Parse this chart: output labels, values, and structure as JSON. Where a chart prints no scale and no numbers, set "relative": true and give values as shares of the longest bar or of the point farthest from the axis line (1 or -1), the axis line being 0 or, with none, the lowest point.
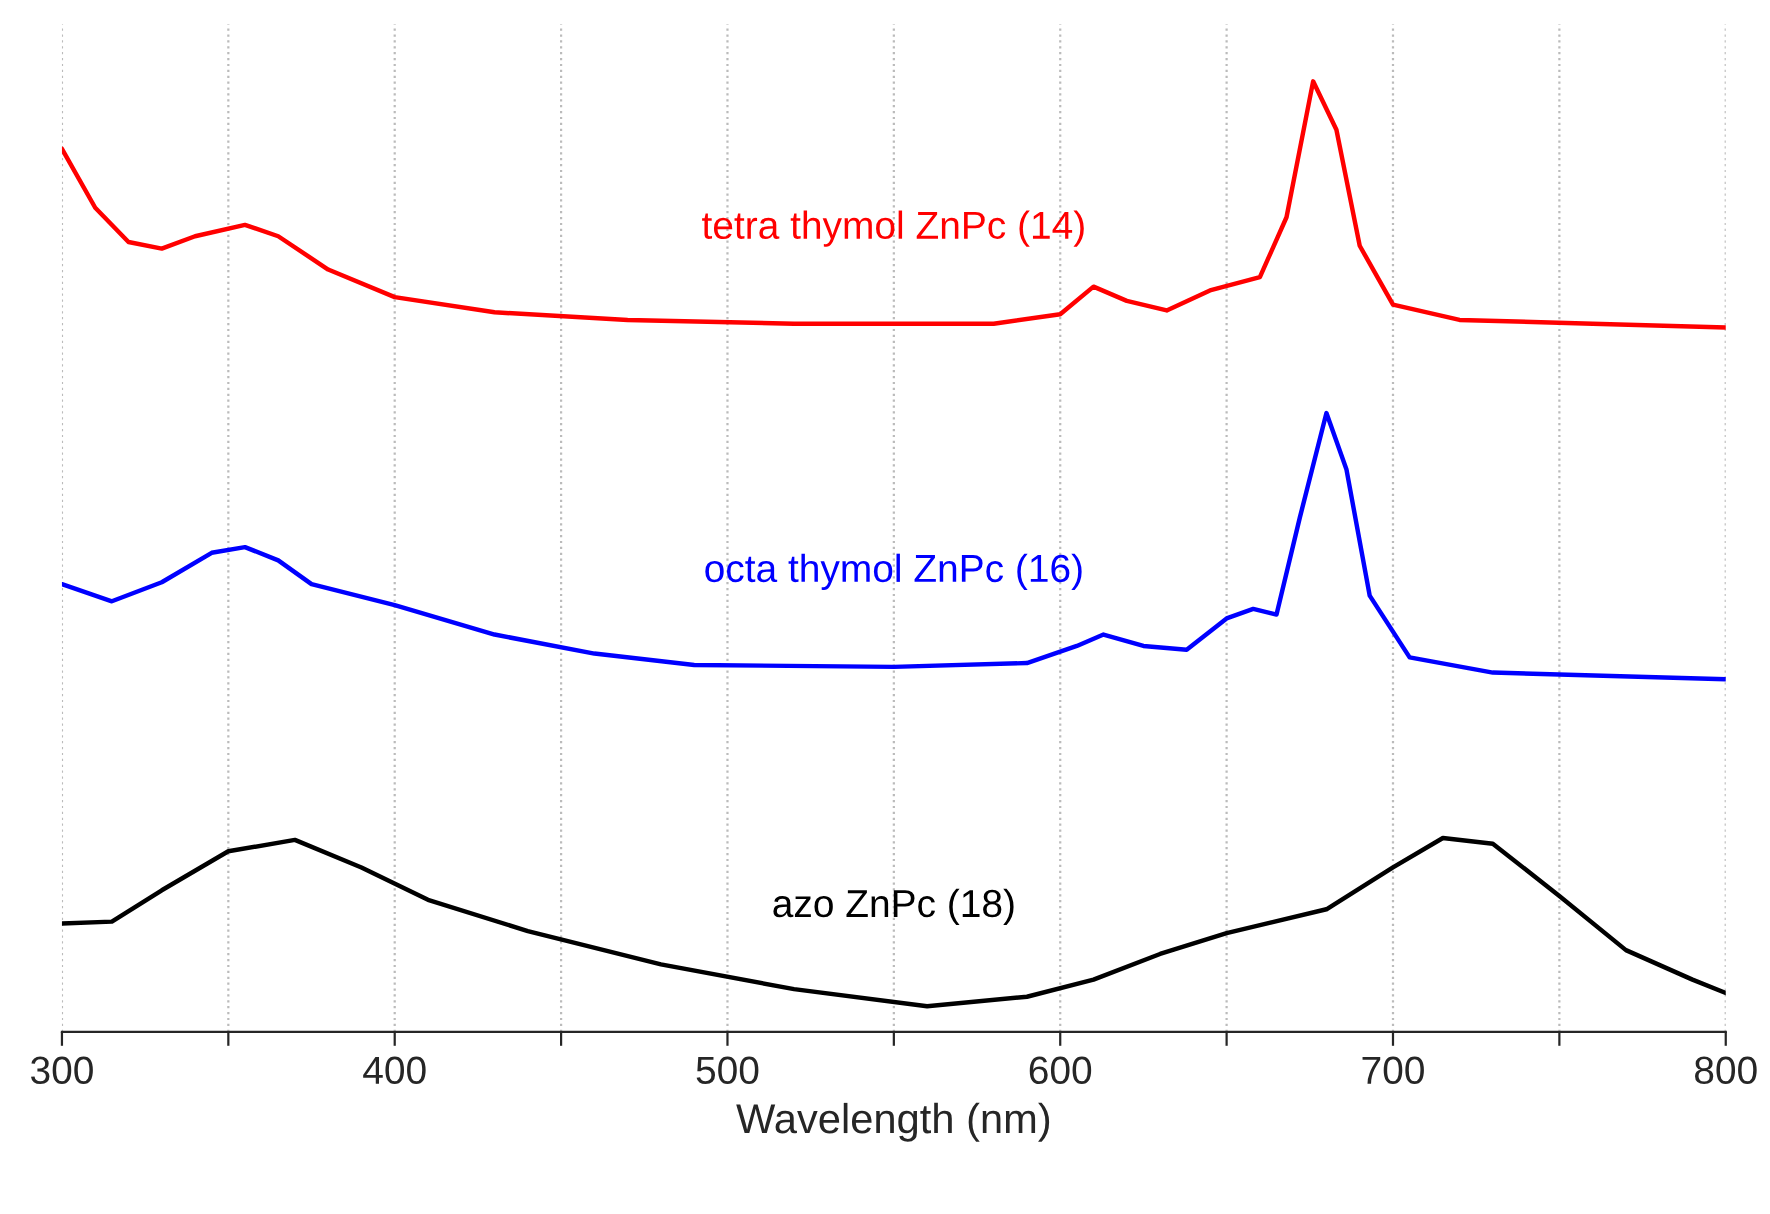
{
  "chart_data": {
    "type": "line",
    "relative": true,
    "xlabel": "Wavelength (nm)",
    "xlim": [
      300,
      800
    ],
    "xticks": [
      300,
      {
        "value": 350,
        "label": null
      },
      400,
      {
        "value": 450,
        "label": null
      },
      500,
      {
        "value": 550,
        "label": null
      },
      600,
      {
        "value": 650,
        "label": null
      },
      700,
      {
        "value": 750,
        "label": null
      },
      800
    ],
    "grid": "x",
    "legend": false,
    "marker": "none",
    "line_style": "solid",
    "series": [
      {
        "name": "tetra thymol ZnPc (14)",
        "color": "#ff0000",
        "x": [
          300,
          310,
          320,
          330,
          340,
          355,
          365,
          380,
          400,
          430,
          470,
          520,
          580,
          600,
          610,
          620,
          632,
          645,
          660,
          668,
          676,
          683,
          690,
          700,
          720,
          760,
          800
        ],
        "values": [
          0.929,
          0.867,
          0.831,
          0.824,
          0.837,
          0.849,
          0.837,
          0.802,
          0.773,
          0.757,
          0.749,
          0.745,
          0.745,
          0.755,
          0.784,
          0.769,
          0.759,
          0.78,
          0.794,
          0.857,
          1.0,
          0.949,
          0.827,
          0.765,
          0.749,
          0.745,
          0.741
        ]
      },
      {
        "name": "octa thymol ZnPc (16)",
        "color": "#0000ff",
        "x": [
          300,
          315,
          330,
          345,
          355,
          365,
          375,
          400,
          430,
          460,
          490,
          550,
          590,
          605,
          613,
          625,
          638,
          650,
          658,
          665,
          672,
          680,
          686,
          693,
          705,
          730,
          800
        ],
        "values": [
          0.471,
          0.453,
          0.473,
          0.504,
          0.51,
          0.496,
          0.471,
          0.449,
          0.418,
          0.398,
          0.386,
          0.384,
          0.388,
          0.406,
          0.418,
          0.406,
          0.402,
          0.435,
          0.445,
          0.439,
          0.541,
          0.651,
          0.592,
          0.459,
          0.394,
          0.378,
          0.371
        ]
      },
      {
        "name": "azo ZnPc (18)",
        "color": "#000000",
        "x": [
          300,
          315,
          330,
          350,
          370,
          390,
          410,
          440,
          480,
          520,
          560,
          590,
          610,
          630,
          650,
          680,
          700,
          715,
          730,
          750,
          770,
          790,
          800
        ],
        "values": [
          0.114,
          0.116,
          0.149,
          0.19,
          0.202,
          0.173,
          0.139,
          0.106,
          0.071,
          0.045,
          0.027,
          0.037,
          0.055,
          0.082,
          0.104,
          0.129,
          0.173,
          0.204,
          0.198,
          0.143,
          0.086,
          0.055,
          0.041
        ]
      }
    ]
  }
}
